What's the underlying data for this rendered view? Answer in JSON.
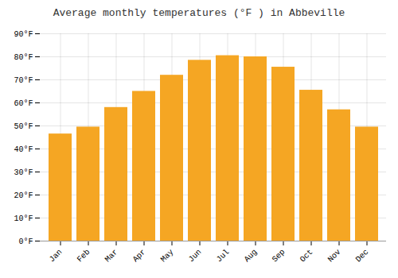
{
  "chart_data": {
    "type": "bar",
    "title": "Average monthly temperatures (°F ) in Abbeville",
    "categories": [
      "Jan",
      "Feb",
      "Mar",
      "Apr",
      "May",
      "Jun",
      "Jul",
      "Aug",
      "Sep",
      "Oct",
      "Nov",
      "Dec"
    ],
    "values": [
      46.5,
      49.5,
      58,
      65,
      72,
      78.5,
      80.5,
      80,
      75.5,
      65.5,
      57,
      49.5
    ],
    "color": "#F5A623",
    "ylim": [
      0,
      90
    ],
    "yticks": [
      {
        "value": 0,
        "label": "0°F"
      },
      {
        "value": 10,
        "label": "10°F"
      },
      {
        "value": 20,
        "label": "20°F"
      },
      {
        "value": 30,
        "label": "30°F"
      },
      {
        "value": 40,
        "label": "40°F"
      },
      {
        "value": 50,
        "label": "50°F"
      },
      {
        "value": 60,
        "label": "60°F"
      },
      {
        "value": 70,
        "label": "70°F"
      },
      {
        "value": 80,
        "label": "80°F"
      },
      {
        "value": 90,
        "label": "90°F"
      }
    ],
    "grid": true
  }
}
